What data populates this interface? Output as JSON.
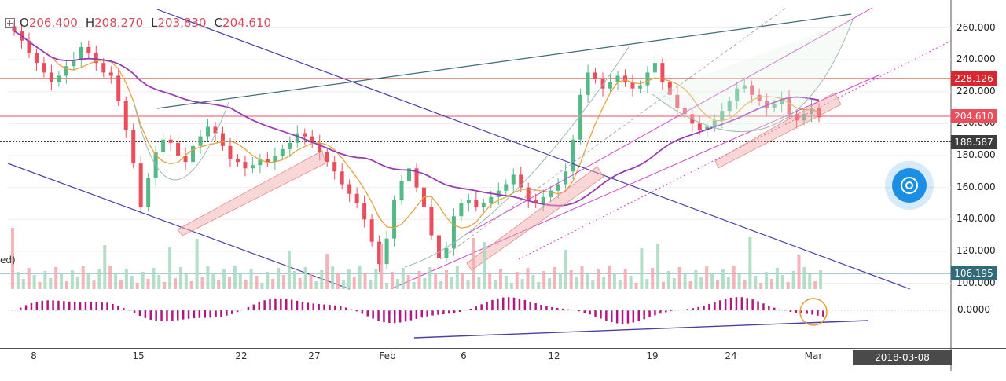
{
  "legend": {
    "open_label": "O",
    "open": "206.400",
    "high_label": "H",
    "high": "208.270",
    "low_label": "L",
    "low": "203.830",
    "close_label": "C",
    "close": "204.610"
  },
  "volume_label": "ed)",
  "crosshair_date": "2018-03-08 16:00:00",
  "colors": {
    "up": "#53b987",
    "down": "#eb4d5c",
    "ma_fast": "#e8a33d",
    "ma_slow": "#9b3bb4",
    "channel": "#cc44cc",
    "trend": "#4a3fa8",
    "level": "#d9262e",
    "highlight": "#f4a7a7"
  },
  "chart_data": {
    "type": "candlestick",
    "symbol_ohlc": {
      "open": 206.4,
      "high": 208.27,
      "low": 203.83,
      "close": 204.61
    },
    "y_axis": {
      "ticks": [
        "260.000",
        "240.000",
        "220.000",
        "200.000",
        "180.000",
        "160.000",
        "140.000",
        "120.000",
        "100.000"
      ],
      "ylim": [
        95,
        268
      ]
    },
    "x_axis": {
      "ticks": [
        "8",
        "15",
        "22",
        "27",
        "Feb",
        "6",
        "12",
        "19",
        "24",
        "Mar"
      ]
    },
    "price_markers": [
      {
        "label": "228.126",
        "value": 228.126,
        "color": "#d9262e"
      },
      {
        "label": "204.610",
        "value": 204.61,
        "color": "#eb4d5c"
      },
      {
        "label": "188.587",
        "value": 188.587,
        "color": "#3d3d3d"
      },
      {
        "label": "106.195",
        "value": 106.195,
        "color": "#2f6b7a"
      }
    ],
    "macd_axis": {
      "ticks": [
        "0.0000"
      ]
    },
    "series_close": [
      258,
      252,
      244,
      238,
      232,
      226,
      230,
      236,
      240,
      248,
      244,
      238,
      232,
      230,
      214,
      196,
      175,
      148,
      166,
      182,
      190,
      188,
      180,
      176,
      186,
      192,
      198,
      194,
      186,
      178,
      176,
      172,
      174,
      178,
      176,
      180,
      184,
      188,
      194,
      192,
      188,
      182,
      176,
      170,
      162,
      156,
      150,
      140,
      126,
      112,
      128,
      152,
      164,
      172,
      160,
      148,
      130,
      116,
      122,
      142,
      150,
      152,
      148,
      150,
      154,
      158,
      162,
      168,
      160,
      152,
      150,
      154,
      158,
      162,
      170,
      190,
      218,
      232,
      228,
      222,
      226,
      230,
      226,
      222,
      224,
      232,
      238,
      226,
      218,
      210,
      206,
      200,
      196,
      198,
      202,
      208,
      214,
      222,
      224,
      218,
      214,
      210,
      212,
      216,
      206,
      202,
      206,
      210,
      204
    ]
  }
}
